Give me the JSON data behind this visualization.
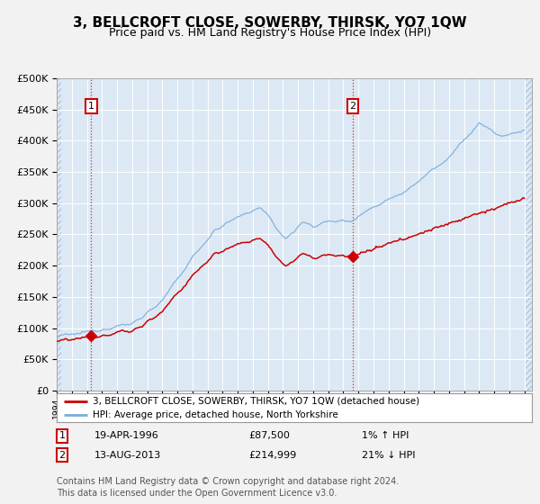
{
  "title": "3, BELLCROFT CLOSE, SOWERBY, THIRSK, YO7 1QW",
  "subtitle": "Price paid vs. HM Land Registry's House Price Index (HPI)",
  "ylim": [
    0,
    500000
  ],
  "yticks": [
    0,
    50000,
    100000,
    150000,
    200000,
    250000,
    300000,
    350000,
    400000,
    450000,
    500000
  ],
  "xlim_start": 1994.0,
  "xlim_end": 2025.5,
  "background_color": "#dce9f5",
  "outer_bg": "#f0f0f0",
  "grid_color": "#ffffff",
  "sale1_date_num": 1996.29,
  "sale1_price": 87500,
  "sale1_label": "1",
  "sale2_date_num": 2013.62,
  "sale2_price": 214999,
  "sale2_label": "2",
  "hpi_color": "#7aacdb",
  "price_color": "#cc0000",
  "vline1_color": "#cc0000",
  "vline2_color": "#cc0000",
  "legend_text1": "3, BELLCROFT CLOSE, SOWERBY, THIRSK, YO7 1QW (detached house)",
  "legend_text2": "HPI: Average price, detached house, North Yorkshire",
  "info1_label": "1",
  "info1_date": "19-APR-1996",
  "info1_price": "£87,500",
  "info1_hpi": "1% ↑ HPI",
  "info2_label": "2",
  "info2_date": "13-AUG-2013",
  "info2_price": "£214,999",
  "info2_hpi": "21% ↓ HPI",
  "footer": "Contains HM Land Registry data © Crown copyright and database right 2024.\nThis data is licensed under the Open Government Licence v3.0.",
  "title_fontsize": 11,
  "subtitle_fontsize": 9,
  "tick_fontsize": 7,
  "legend_fontsize": 8,
  "info_fontsize": 8,
  "footer_fontsize": 7
}
